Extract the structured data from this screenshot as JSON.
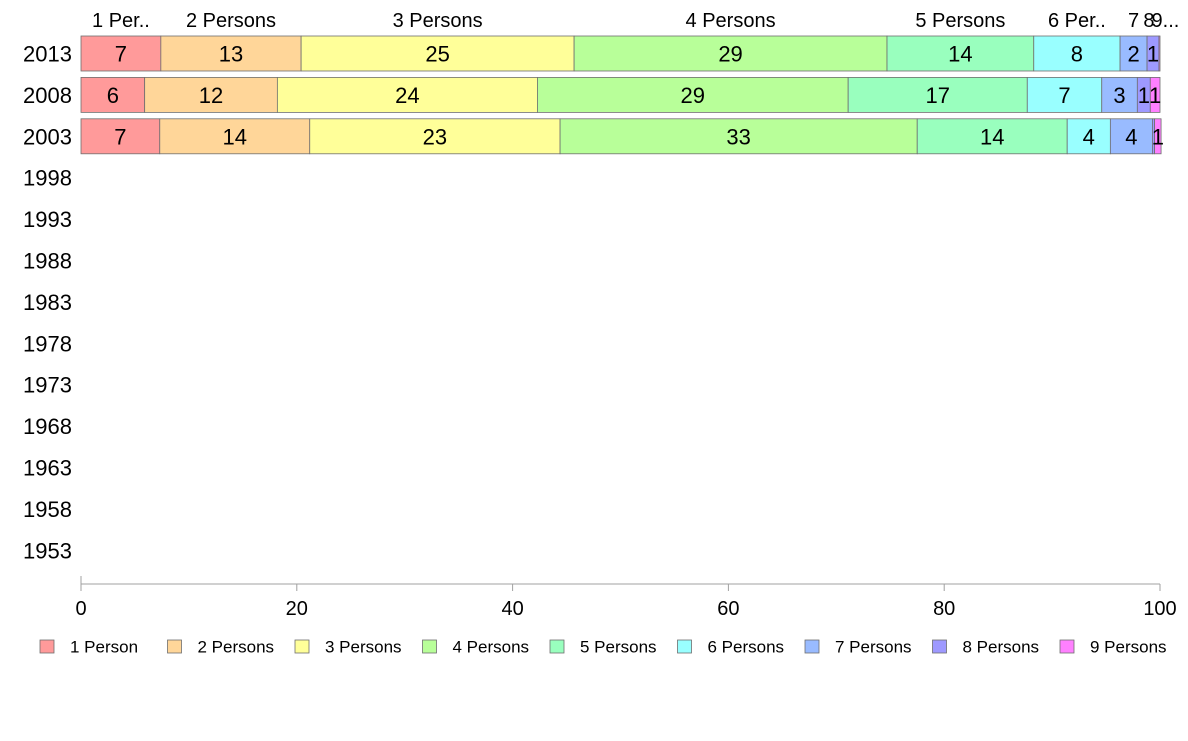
{
  "chart_data": {
    "type": "bar",
    "orientation": "horizontal",
    "stacked": true,
    "categories": [
      "2013",
      "2008",
      "2003",
      "1998",
      "1993",
      "1988",
      "1983",
      "1978",
      "1973",
      "1968",
      "1963",
      "1958",
      "1953"
    ],
    "series": [
      {
        "name": "1 Person",
        "color": "#ff9a9a",
        "values": [
          7.4,
          5.9,
          7.3,
          null,
          null,
          null,
          null,
          null,
          null,
          null,
          null,
          null,
          null
        ],
        "labels": [
          "7",
          "6",
          "7"
        ]
      },
      {
        "name": "2 Persons",
        "color": "#ffd699",
        "values": [
          13.0,
          12.3,
          13.9,
          null,
          null,
          null,
          null,
          null,
          null,
          null,
          null,
          null,
          null
        ],
        "labels": [
          "13",
          "12",
          "14"
        ]
      },
      {
        "name": "3 Persons",
        "color": "#ffff99",
        "values": [
          25.3,
          24.1,
          23.2,
          null,
          null,
          null,
          null,
          null,
          null,
          null,
          null,
          null,
          null
        ],
        "labels": [
          "25",
          "24",
          "23"
        ]
      },
      {
        "name": "4 Persons",
        "color": "#b8ff99",
        "values": [
          29.0,
          28.8,
          33.1,
          null,
          null,
          null,
          null,
          null,
          null,
          null,
          null,
          null,
          null
        ],
        "labels": [
          "29",
          "29",
          "33"
        ]
      },
      {
        "name": "5 Persons",
        "color": "#99ffbe",
        "values": [
          13.6,
          16.6,
          13.9,
          null,
          null,
          null,
          null,
          null,
          null,
          null,
          null,
          null,
          null
        ],
        "labels": [
          "14",
          "17",
          "14"
        ]
      },
      {
        "name": "6 Persons",
        "color": "#99ffff",
        "values": [
          8.0,
          6.9,
          4.0,
          null,
          null,
          null,
          null,
          null,
          null,
          null,
          null,
          null,
          null
        ],
        "labels": [
          "8",
          "7",
          "4"
        ]
      },
      {
        "name": "7 Persons",
        "color": "#99bbff",
        "values": [
          2.5,
          3.3,
          3.9,
          null,
          null,
          null,
          null,
          null,
          null,
          null,
          null,
          null,
          null
        ],
        "labels": [
          "2",
          "3",
          "4"
        ]
      },
      {
        "name": "8 Persons",
        "color": "#9e99ff",
        "values": [
          1.1,
          1.2,
          0.2,
          null,
          null,
          null,
          null,
          null,
          null,
          null,
          null,
          null,
          null
        ],
        "labels": [
          "1",
          "1",
          ""
        ]
      },
      {
        "name": "9 Persons",
        "color": "#ff80ff",
        "values": [
          0.1,
          0.9,
          0.6,
          null,
          null,
          null,
          null,
          null,
          null,
          null,
          null,
          null,
          null
        ],
        "labels": [
          "",
          "1",
          "1"
        ]
      }
    ],
    "top_labels": [
      "1 Per..",
      "2 Persons",
      "3 Persons",
      "4 Persons",
      "5 Persons",
      "6 Per..",
      "7",
      "8",
      "9..."
    ],
    "xlim": [
      0,
      100
    ],
    "xticks": [
      "0",
      "20",
      "40",
      "60",
      "80",
      "100"
    ],
    "xlabel": "",
    "ylabel": "",
    "title": "",
    "grid": false,
    "legend_position": "bottom"
  }
}
